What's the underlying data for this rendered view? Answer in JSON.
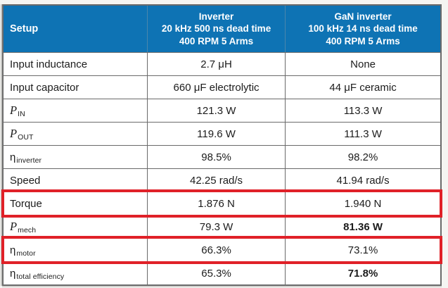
{
  "colors": {
    "header_bg": "#0e73b4",
    "header_text": "#ffffff",
    "grid": "#6a6a6a",
    "highlight_red": "#e02128",
    "body_text": "#1c1c1c",
    "body_bg": "#ffffff"
  },
  "table": {
    "header": {
      "setup": "Setup",
      "inverter_lines": [
        "Inverter",
        "20 kHz 500 ns dead time",
        "400 RPM 5 Arms"
      ],
      "gan_lines": [
        "GaN inverter",
        "100 kHz 14 ns dead time",
        "400 RPM 5 Arms"
      ]
    },
    "rows": [
      {
        "base": "Input inductance",
        "sub": "",
        "italic": false,
        "v1": "2.7 μH",
        "v2": "None",
        "v2_bold": false,
        "highlight": false
      },
      {
        "base": "Input capacitor",
        "sub": "",
        "italic": false,
        "v1": "660 μF electrolytic",
        "v2": "44 μF ceramic",
        "v2_bold": false,
        "highlight": false
      },
      {
        "base": "P",
        "sub": "IN",
        "italic": true,
        "v1": "121.3 W",
        "v2": "113.3 W",
        "v2_bold": false,
        "highlight": false
      },
      {
        "base": "P",
        "sub": "OUT",
        "italic": true,
        "v1": "119.6 W",
        "v2": "111.3 W",
        "v2_bold": false,
        "highlight": false
      },
      {
        "base": "η",
        "sub": "inverter",
        "italic": false,
        "v1": "98.5%",
        "v2": "98.2%",
        "v2_bold": false,
        "highlight": false
      },
      {
        "base": "Speed",
        "sub": "",
        "italic": false,
        "v1": "42.25 rad/s",
        "v2": "41.94 rad/s",
        "v2_bold": false,
        "highlight": false
      },
      {
        "base": "Torque",
        "sub": "",
        "italic": false,
        "v1": "1.876 N",
        "v2": "1.940 N",
        "v2_bold": false,
        "highlight": true
      },
      {
        "base": "P",
        "sub": "mech",
        "italic": true,
        "v1": "79.3 W",
        "v2": "81.36 W",
        "v2_bold": true,
        "highlight": false
      },
      {
        "base": "η",
        "sub": "motor",
        "italic": false,
        "v1": "66.3%",
        "v2": "73.1%",
        "v2_bold": false,
        "highlight": true
      },
      {
        "base": "η",
        "sub": "total efficiency",
        "italic": false,
        "v1": "65.3%",
        "v2": "71.8%",
        "v2_bold": true,
        "highlight": false
      }
    ]
  },
  "chart_data": {
    "type": "table",
    "columns": [
      "Setup",
      "Inverter 20 kHz 500 ns dead time 400 RPM 5 Arms",
      "GaN inverter 100 kHz 14 ns dead time 400 RPM 5 Arms"
    ],
    "rows": [
      [
        "Input inductance",
        "2.7 μH",
        "None"
      ],
      [
        "Input capacitor",
        "660 μF electrolytic",
        "44 μF ceramic"
      ],
      [
        "P_IN",
        "121.3 W",
        "113.3 W"
      ],
      [
        "P_OUT",
        "119.6 W",
        "111.3 W"
      ],
      [
        "η_inverter",
        "98.5%",
        "98.2%"
      ],
      [
        "Speed",
        "42.25 rad/s",
        "41.94 rad/s"
      ],
      [
        "Torque",
        "1.876 N",
        "1.940 N"
      ],
      [
        "P_mech",
        "79.3 W",
        "81.36 W"
      ],
      [
        "η_motor",
        "66.3%",
        "73.1%"
      ],
      [
        "η_total efficiency",
        "65.3%",
        "71.8%"
      ]
    ],
    "highlighted_rows": [
      "Torque",
      "η_motor"
    ],
    "bold_cells": [
      [
        "P_mech",
        "81.36 W"
      ],
      [
        "η_total efficiency",
        "71.8%"
      ]
    ]
  }
}
